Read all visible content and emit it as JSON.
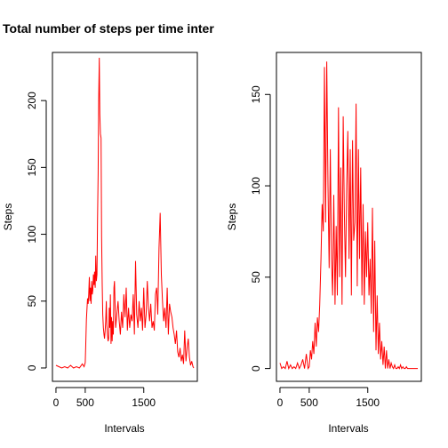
{
  "chart_data": [
    {
      "type": "line",
      "title": "Total number of steps per time inter",
      "xlabel": "Intervals",
      "ylabel": "Steps",
      "xlim": [
        -60,
        2415
      ],
      "ylim": [
        -10,
        236
      ],
      "xticks": [
        0,
        500,
        1500
      ],
      "yticks": [
        0,
        50,
        100,
        150,
        200
      ],
      "color": "#ff0000",
      "series": [
        {
          "x": [
            0,
            50,
            100,
            150,
            200,
            250,
            300,
            350,
            400,
            450,
            480,
            500,
            510,
            520,
            530,
            540,
            550,
            560,
            570,
            580,
            590,
            600,
            610,
            620,
            630,
            640,
            650,
            660,
            670,
            680,
            690,
            700,
            710,
            720,
            730,
            740,
            750,
            760,
            770,
            780,
            790,
            800,
            810,
            820,
            830,
            840,
            850,
            860,
            870,
            880,
            890,
            900,
            910,
            920,
            930,
            940,
            950,
            960,
            970,
            980,
            990,
            1000,
            1020,
            1040,
            1060,
            1080,
            1100,
            1120,
            1140,
            1160,
            1180,
            1200,
            1220,
            1240,
            1260,
            1280,
            1300,
            1320,
            1340,
            1360,
            1380,
            1400,
            1420,
            1440,
            1460,
            1480,
            1500,
            1520,
            1540,
            1560,
            1580,
            1600,
            1620,
            1640,
            1660,
            1680,
            1700,
            1720,
            1740,
            1760,
            1780,
            1800,
            1820,
            1840,
            1860,
            1880,
            1900,
            1920,
            1940,
            1960,
            1980,
            2000,
            2020,
            2040,
            2060,
            2080,
            2100,
            2120,
            2140,
            2160,
            2180,
            2200,
            2220,
            2240,
            2260,
            2280,
            2300,
            2320,
            2340,
            2355
          ],
          "y": [
            2,
            1,
            0,
            1,
            0,
            2,
            0,
            1,
            0,
            3,
            1,
            4,
            18,
            36,
            45,
            52,
            48,
            55,
            68,
            50,
            60,
            48,
            65,
            55,
            58,
            70,
            62,
            72,
            60,
            84,
            65,
            70,
            110,
            145,
            200,
            232,
            190,
            175,
            172,
            98,
            62,
            40,
            30,
            25,
            22,
            28,
            35,
            50,
            32,
            25,
            20,
            22,
            45,
            30,
            55,
            18,
            38,
            20,
            35,
            25,
            60,
            65,
            30,
            40,
            50,
            35,
            25,
            42,
            30,
            55,
            38,
            60,
            28,
            45,
            30,
            40,
            35,
            55,
            25,
            80,
            40,
            30,
            50,
            35,
            45,
            28,
            60,
            30,
            40,
            65,
            45,
            35,
            48,
            30,
            35,
            28,
            55,
            60,
            40,
            90,
            116,
            70,
            50,
            35,
            45,
            30,
            60,
            25,
            48,
            42,
            38,
            30,
            25,
            18,
            28,
            12,
            8,
            15,
            5,
            10,
            3,
            28,
            5,
            15,
            22,
            8,
            2,
            5,
            1,
            0
          ],
          "name": ""
        }
      ]
    },
    {
      "type": "line",
      "title": "",
      "xlabel": "Intervals",
      "ylabel": "Steps",
      "xlim": [
        -60,
        2415
      ],
      "ylim": [
        -7,
        173
      ],
      "xticks": [
        0,
        500,
        1500
      ],
      "yticks": [
        0,
        50,
        100,
        150
      ],
      "color": "#ff0000",
      "series": [
        {
          "x": [
            0,
            30,
            60,
            90,
            120,
            150,
            180,
            210,
            240,
            270,
            300,
            330,
            360,
            390,
            420,
            450,
            480,
            500,
            520,
            540,
            560,
            580,
            600,
            620,
            640,
            660,
            680,
            700,
            720,
            740,
            760,
            780,
            800,
            820,
            840,
            860,
            880,
            900,
            920,
            940,
            960,
            980,
            1000,
            1020,
            1040,
            1060,
            1080,
            1100,
            1120,
            1140,
            1160,
            1180,
            1200,
            1220,
            1240,
            1260,
            1280,
            1300,
            1320,
            1340,
            1360,
            1380,
            1400,
            1420,
            1440,
            1460,
            1480,
            1500,
            1520,
            1540,
            1560,
            1580,
            1600,
            1620,
            1640,
            1660,
            1680,
            1700,
            1720,
            1740,
            1760,
            1780,
            1800,
            1820,
            1840,
            1860,
            1880,
            1900,
            1920,
            1940,
            1960,
            1980,
            2000,
            2020,
            2040,
            2060,
            2080,
            2100,
            2120,
            2140,
            2160,
            2180,
            2200,
            2220,
            2240,
            2260,
            2280,
            2300,
            2320,
            2340,
            2355
          ],
          "y": [
            3,
            0,
            1,
            0,
            4,
            0,
            2,
            0,
            1,
            0,
            3,
            0,
            2,
            5,
            0,
            8,
            0,
            1,
            10,
            5,
            15,
            8,
            25,
            12,
            28,
            20,
            35,
            60,
            90,
            75,
            165,
            80,
            168,
            100,
            55,
            120,
            60,
            40,
            95,
            35,
            78,
            40,
            143,
            50,
            110,
            35,
            138,
            85,
            50,
            100,
            130,
            60,
            120,
            40,
            125,
            70,
            80,
            145,
            45,
            120,
            60,
            110,
            40,
            90,
            35,
            75,
            50,
            80,
            40,
            60,
            30,
            88,
            20,
            70,
            10,
            40,
            8,
            25,
            5,
            15,
            2,
            12,
            0,
            10,
            0,
            5,
            0,
            3,
            1,
            0,
            2,
            0,
            0,
            1,
            0,
            2,
            0,
            1,
            0,
            0,
            1,
            0,
            0,
            0,
            0,
            0,
            0,
            0,
            0,
            0,
            0
          ],
          "name": ""
        }
      ]
    }
  ]
}
